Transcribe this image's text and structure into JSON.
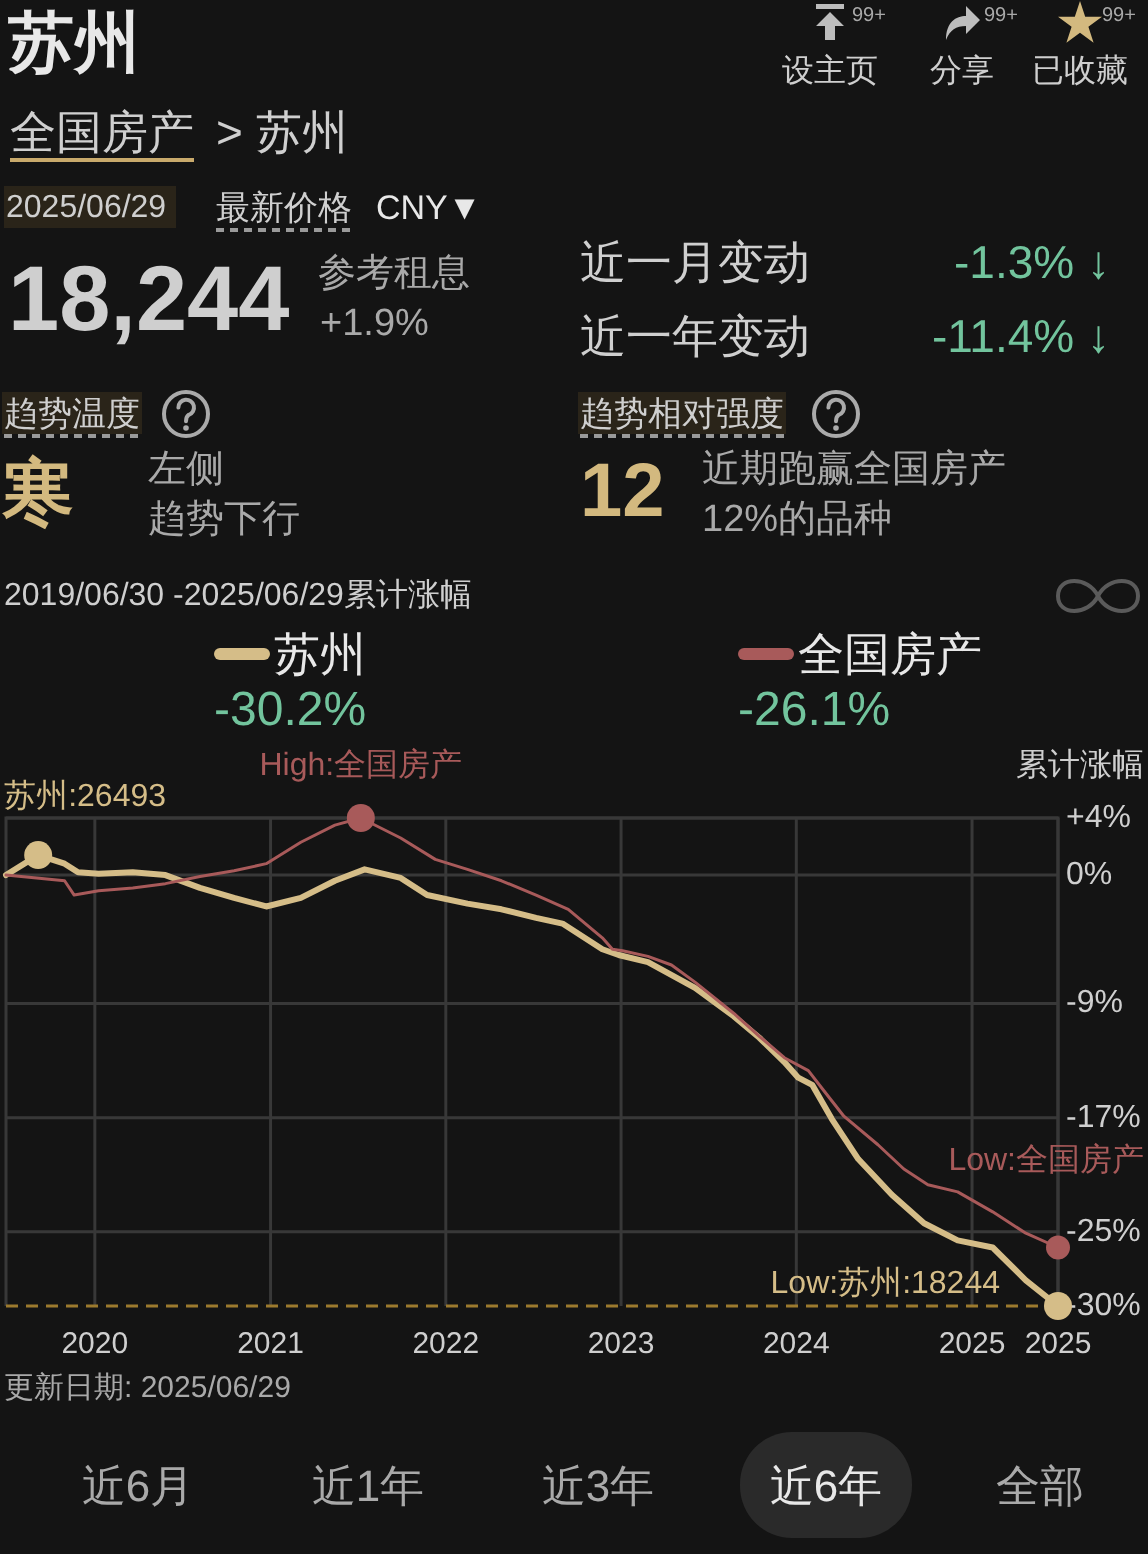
{
  "chart_data": {
    "type": "line",
    "title": "苏州",
    "subtitle": "2019/06/30 -2025/06/29累计涨幅",
    "ylabel": "累计涨幅",
    "series": [
      {
        "name": "苏州",
        "color": "#d5bd88",
        "x": [
          "2019-06-30",
          "2019-09-05",
          "2019-10-30",
          "2019-11-27",
          "2020-01-09",
          "2020-03-20",
          "2020-05-27",
          "2020-08-07",
          "2020-10-17",
          "2020-12-23",
          "2021-03-05",
          "2021-05-15",
          "2021-07-16",
          "2021-09-29",
          "2021-11-23",
          "2022-02-15",
          "2022-04-27",
          "2022-07-08",
          "2022-09-01",
          "2022-11-23",
          "2022-12-27",
          "2023-02-26",
          "2023-06-04",
          "2023-08-24",
          "2023-10-16",
          "2023-12-07",
          "2024-01-05",
          "2024-02-03",
          "2024-03-15",
          "2024-05-09",
          "2024-07-18",
          "2024-09-23",
          "2024-12-02",
          "2025-02-13",
          "2025-04-23",
          "2025-06-29"
        ],
        "values": [
          0,
          1.4,
          0.8,
          0.2,
          0.1,
          0.2,
          0,
          -0.9,
          -1.6,
          -2.2,
          -1.6,
          -0.4,
          0.4,
          -0.2,
          -1.4,
          -2.0,
          -2.4,
          -3.0,
          -3.4,
          -5.2,
          -5.6,
          -6.1,
          -7.9,
          -9.9,
          -11.4,
          -13.1,
          -14.2,
          -14.7,
          -17.1,
          -19.9,
          -22.4,
          -24.4,
          -25.6,
          -26.1,
          -28.4,
          -30.2
        ]
      },
      {
        "name": "全国房产",
        "color": "#a85a5a",
        "x": [
          "2019-06-30",
          "2019-10-30",
          "2019-11-19",
          "2020-01-09",
          "2020-03-20",
          "2020-05-27",
          "2020-08-07",
          "2020-10-17",
          "2020-12-23",
          "2021-03-05",
          "2021-05-15",
          "2021-07-08",
          "2021-09-29",
          "2021-12-10",
          "2022-02-15",
          "2022-04-27",
          "2022-07-08",
          "2022-09-13",
          "2022-11-23",
          "2022-12-14",
          "2023-01-04",
          "2023-02-26",
          "2023-04-16",
          "2023-06-04",
          "2023-08-24",
          "2023-10-16",
          "2023-12-07",
          "2024-01-26",
          "2024-02-27",
          "2024-04-09",
          "2024-06-19",
          "2024-08-12",
          "2024-10-01",
          "2024-12-02",
          "2025-02-13",
          "2025-04-23",
          "2025-06-29"
        ],
        "values": [
          0,
          -0.4,
          -1.4,
          -1.1,
          -0.9,
          -0.6,
          -0.1,
          0.3,
          0.8,
          2.3,
          3.5,
          4,
          2.6,
          1.1,
          0.4,
          -0.4,
          -1.4,
          -2.4,
          -4.4,
          -5.2,
          -5.3,
          -5.7,
          -6.3,
          -7.5,
          -9.7,
          -11.3,
          -12.8,
          -13.7,
          -15.1,
          -16.9,
          -18.9,
          -20.6,
          -21.7,
          -22.2,
          -23.6,
          -25.1,
          -26.1
        ]
      }
    ],
    "xlim": [
      "2019-06-30",
      "2025-06-29"
    ],
    "xticks": [
      "2020",
      "2021",
      "2022",
      "2023",
      "2024",
      "2025",
      {
        "value": "2025-06-29",
        "label": "2025"
      }
    ],
    "ylim": [
      -30.2,
      4
    ],
    "yticks": [
      {
        "value": 4,
        "label": "+4%"
      },
      {
        "value": 0,
        "label": "0%"
      },
      {
        "value": -9,
        "label": "-9%"
      },
      {
        "value": -17,
        "label": "-17%"
      },
      {
        "value": -25,
        "label": "-25%"
      }
    ],
    "ref_lines": [
      {
        "axis": "y",
        "value": -30.2,
        "label": "-30%",
        "color": "#9c7a2e",
        "line_style": "dashed"
      }
    ],
    "grid": true,
    "legend": "top",
    "annotations": [
      "全国房产",
      "> 苏州",
      "设主页",
      "分享",
      "已收藏",
      "99+",
      "99+",
      "99+",
      "2025/06/29",
      "最新价格",
      "CNY▼",
      "18,244",
      "参考租息",
      "+1.9%",
      "近一月变动",
      "-1.3% ↓",
      "近一年变动",
      "-11.4% ↓",
      "趋势温度",
      "寒",
      "左侧",
      "趋势下行",
      "趋势相对强度",
      "12",
      "近期跑赢全国房产",
      "12%的品种",
      "-30.2%",
      "-26.1%",
      {
        "text": "苏州:26493",
        "x": "2019-09-05",
        "y": 1.4
      },
      {
        "text": "High:全国房产",
        "x": "2021-07-08",
        "y": 4
      },
      {
        "text": "Low:全国房产",
        "x": "2025-06-29",
        "y": -26.1
      },
      {
        "text": "Low:苏州:18244",
        "x": "2025-06-29",
        "y": -30.2
      },
      "更新日期: 2025/06/29",
      "近6月",
      "近1年",
      "近3年",
      "近6年",
      "全部"
    ]
  }
}
